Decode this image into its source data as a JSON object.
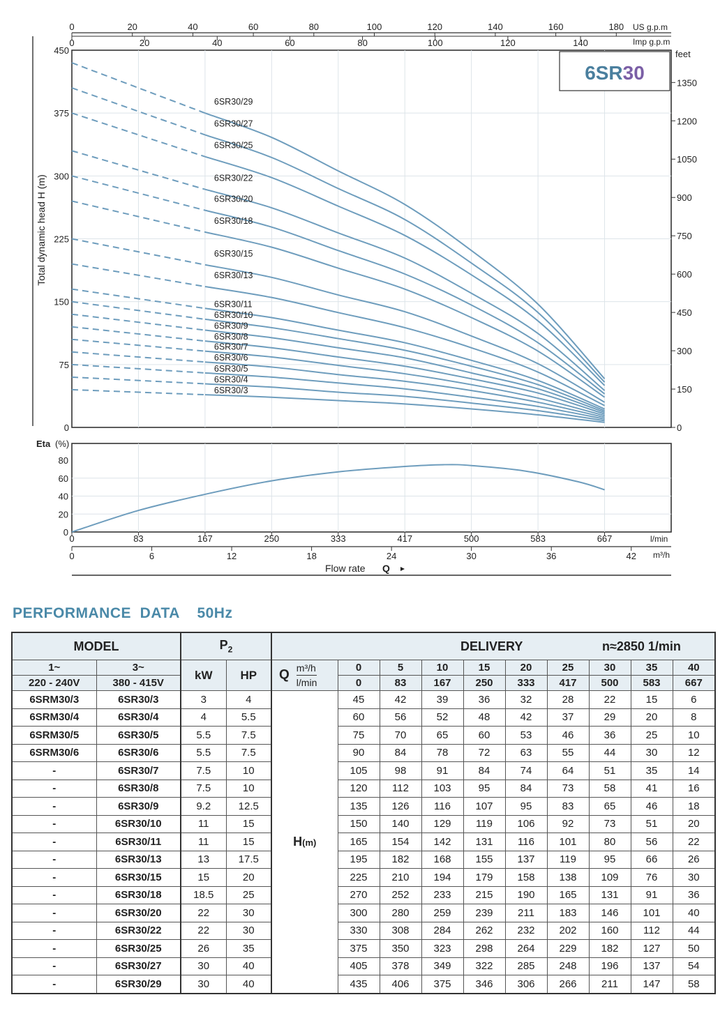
{
  "chart_data": {
    "type": "line",
    "title": "6SR30",
    "title_parts": [
      "6SR",
      "30"
    ],
    "ylabel": "Total dynamic head H (m)",
    "ylim": [
      0,
      450
    ],
    "yticks": [
      "0",
      "75",
      "150",
      "225",
      "300",
      "375",
      "450"
    ],
    "y2label": "feet",
    "y2ticks": [
      "0",
      "150",
      "300",
      "450",
      "600",
      "750",
      "900",
      "1050",
      "1200",
      "1350"
    ],
    "top_axis_us": {
      "unit": "US g.p.m",
      "ticks": [
        "0",
        "20",
        "40",
        "60",
        "80",
        "100",
        "120",
        "140",
        "160",
        "180"
      ]
    },
    "top_axis_imp": {
      "unit": "Imp g.p.m",
      "ticks": [
        "0",
        "20",
        "40",
        "60",
        "80",
        "100",
        "120",
        "140"
      ]
    },
    "x_lmin": {
      "unit": "l/min",
      "ticks": [
        "0",
        "83",
        "167",
        "250",
        "333",
        "417",
        "500",
        "583",
        "667"
      ]
    },
    "x_m3h": {
      "unit": "m³/h",
      "ticks": [
        "0",
        "6",
        "12",
        "18",
        "24",
        "30",
        "36",
        "42"
      ]
    },
    "xlabel": "Flow rate",
    "xlabel_symbol": "Q",
    "xlim": [
      0,
      45
    ],
    "eta": {
      "label": "Eta",
      "unit": "(%)",
      "yticks": [
        "0",
        "20",
        "40",
        "60",
        "80"
      ],
      "x": [
        0,
        5,
        10,
        15,
        20,
        25,
        28,
        30,
        34,
        38,
        40
      ],
      "y": [
        0,
        24,
        42,
        57,
        67,
        73,
        75,
        74,
        68,
        56,
        47
      ]
    },
    "x": [
      0,
      5,
      10,
      15,
      20,
      25,
      30,
      35,
      40
    ],
    "solid_from": 10,
    "series": [
      {
        "name": "6SR30/29",
        "values": [
          435,
          406,
          375,
          346,
          306,
          266,
          211,
          147,
          58
        ]
      },
      {
        "name": "6SR30/27",
        "values": [
          405,
          378,
          349,
          322,
          285,
          248,
          196,
          137,
          54
        ]
      },
      {
        "name": "6SR30/25",
        "values": [
          375,
          350,
          323,
          298,
          264,
          229,
          182,
          127,
          50
        ]
      },
      {
        "name": "6SR30/22",
        "values": [
          330,
          308,
          284,
          262,
          232,
          202,
          160,
          112,
          44
        ]
      },
      {
        "name": "6SR30/20",
        "values": [
          300,
          280,
          259,
          239,
          211,
          183,
          146,
          101,
          40
        ]
      },
      {
        "name": "6SR30/18",
        "values": [
          270,
          252,
          233,
          215,
          190,
          165,
          131,
          91,
          36
        ]
      },
      {
        "name": "6SR30/15",
        "values": [
          225,
          210,
          194,
          179,
          158,
          138,
          109,
          76,
          30
        ]
      },
      {
        "name": "6SR30/13",
        "values": [
          195,
          182,
          168,
          155,
          137,
          119,
          95,
          66,
          26
        ]
      },
      {
        "name": "6SR30/11",
        "values": [
          165,
          154,
          142,
          131,
          116,
          101,
          80,
          56,
          22
        ]
      },
      {
        "name": "6SR30/10",
        "values": [
          150,
          140,
          129,
          119,
          106,
          92,
          73,
          51,
          20
        ]
      },
      {
        "name": "6SR30/9",
        "values": [
          135,
          126,
          116,
          107,
          95,
          83,
          65,
          46,
          18
        ]
      },
      {
        "name": "6SR30/8",
        "values": [
          120,
          112,
          103,
          95,
          84,
          73,
          58,
          41,
          16
        ]
      },
      {
        "name": "6SR30/7",
        "values": [
          105,
          98,
          91,
          84,
          74,
          64,
          51,
          35,
          14
        ]
      },
      {
        "name": "6SR30/6",
        "values": [
          90,
          84,
          78,
          72,
          63,
          55,
          44,
          30,
          12
        ]
      },
      {
        "name": "6SR30/5",
        "values": [
          75,
          70,
          65,
          60,
          53,
          46,
          36,
          25,
          10
        ]
      },
      {
        "name": "6SR30/4",
        "values": [
          60,
          56,
          52,
          48,
          42,
          37,
          29,
          20,
          8
        ]
      },
      {
        "name": "6SR30/3",
        "values": [
          45,
          42,
          39,
          36,
          32,
          28,
          22,
          15,
          6
        ]
      }
    ],
    "colors": {
      "curve": "#6e9dbd",
      "title_a": "#4a7f9e",
      "title_b": "#7b5fa6",
      "heading": "#4a89a8"
    }
  },
  "table": {
    "heading": "PERFORMANCE  DATA    50Hz",
    "model": "MODEL",
    "p2": "P",
    "p2_sub": "2",
    "delivery": "DELIVERY",
    "speed": "n≈2850 1/min",
    "phase1": "1~",
    "phase1_v": "220 - 240V",
    "phase3": "3~",
    "phase3_v": "380 - 415V",
    "kw": "kW",
    "hp": "HP",
    "q": "Q",
    "q_unit1": "m³/h",
    "q_unit2": "l/min",
    "h": "H",
    "h_unit": "(m)",
    "q_m3h": [
      "0",
      "5",
      "10",
      "15",
      "20",
      "25",
      "30",
      "35",
      "40"
    ],
    "q_lmin": [
      "0",
      "83",
      "167",
      "250",
      "333",
      "417",
      "500",
      "583",
      "667"
    ],
    "rows": [
      {
        "m1": "6SRM30/3",
        "m3": "6SR30/3",
        "kw": "3",
        "hp": "4",
        "h": [
          "45",
          "42",
          "39",
          "36",
          "32",
          "28",
          "22",
          "15",
          "6"
        ]
      },
      {
        "m1": "6SRM30/4",
        "m3": "6SR30/4",
        "kw": "4",
        "hp": "5.5",
        "h": [
          "60",
          "56",
          "52",
          "48",
          "42",
          "37",
          "29",
          "20",
          "8"
        ]
      },
      {
        "m1": "6SRM30/5",
        "m3": "6SR30/5",
        "kw": "5.5",
        "hp": "7.5",
        "h": [
          "75",
          "70",
          "65",
          "60",
          "53",
          "46",
          "36",
          "25",
          "10"
        ]
      },
      {
        "m1": "6SRM30/6",
        "m3": "6SR30/6",
        "kw": "5.5",
        "hp": "7.5",
        "h": [
          "90",
          "84",
          "78",
          "72",
          "63",
          "55",
          "44",
          "30",
          "12"
        ]
      },
      {
        "m1": "-",
        "m3": "6SR30/7",
        "kw": "7.5",
        "hp": "10",
        "h": [
          "105",
          "98",
          "91",
          "84",
          "74",
          "64",
          "51",
          "35",
          "14"
        ]
      },
      {
        "m1": "-",
        "m3": "6SR30/8",
        "kw": "7.5",
        "hp": "10",
        "h": [
          "120",
          "112",
          "103",
          "95",
          "84",
          "73",
          "58",
          "41",
          "16"
        ]
      },
      {
        "m1": "-",
        "m3": "6SR30/9",
        "kw": "9.2",
        "hp": "12.5",
        "h": [
          "135",
          "126",
          "116",
          "107",
          "95",
          "83",
          "65",
          "46",
          "18"
        ]
      },
      {
        "m1": "-",
        "m3": "6SR30/10",
        "kw": "11",
        "hp": "15",
        "h": [
          "150",
          "140",
          "129",
          "119",
          "106",
          "92",
          "73",
          "51",
          "20"
        ]
      },
      {
        "m1": "-",
        "m3": "6SR30/11",
        "kw": "11",
        "hp": "15",
        "h": [
          "165",
          "154",
          "142",
          "131",
          "116",
          "101",
          "80",
          "56",
          "22"
        ]
      },
      {
        "m1": "-",
        "m3": "6SR30/13",
        "kw": "13",
        "hp": "17.5",
        "h": [
          "195",
          "182",
          "168",
          "155",
          "137",
          "119",
          "95",
          "66",
          "26"
        ]
      },
      {
        "m1": "-",
        "m3": "6SR30/15",
        "kw": "15",
        "hp": "20",
        "h": [
          "225",
          "210",
          "194",
          "179",
          "158",
          "138",
          "109",
          "76",
          "30"
        ]
      },
      {
        "m1": "-",
        "m3": "6SR30/18",
        "kw": "18.5",
        "hp": "25",
        "h": [
          "270",
          "252",
          "233",
          "215",
          "190",
          "165",
          "131",
          "91",
          "36"
        ]
      },
      {
        "m1": "-",
        "m3": "6SR30/20",
        "kw": "22",
        "hp": "30",
        "h": [
          "300",
          "280",
          "259",
          "239",
          "211",
          "183",
          "146",
          "101",
          "40"
        ]
      },
      {
        "m1": "-",
        "m3": "6SR30/22",
        "kw": "22",
        "hp": "30",
        "h": [
          "330",
          "308",
          "284",
          "262",
          "232",
          "202",
          "160",
          "112",
          "44"
        ]
      },
      {
        "m1": "-",
        "m3": "6SR30/25",
        "kw": "26",
        "hp": "35",
        "h": [
          "375",
          "350",
          "323",
          "298",
          "264",
          "229",
          "182",
          "127",
          "50"
        ]
      },
      {
        "m1": "-",
        "m3": "6SR30/27",
        "kw": "30",
        "hp": "40",
        "h": [
          "405",
          "378",
          "349",
          "322",
          "285",
          "248",
          "196",
          "137",
          "54"
        ]
      },
      {
        "m1": "-",
        "m3": "6SR30/29",
        "kw": "30",
        "hp": "40",
        "h": [
          "435",
          "406",
          "375",
          "346",
          "306",
          "266",
          "211",
          "147",
          "58"
        ]
      }
    ]
  }
}
